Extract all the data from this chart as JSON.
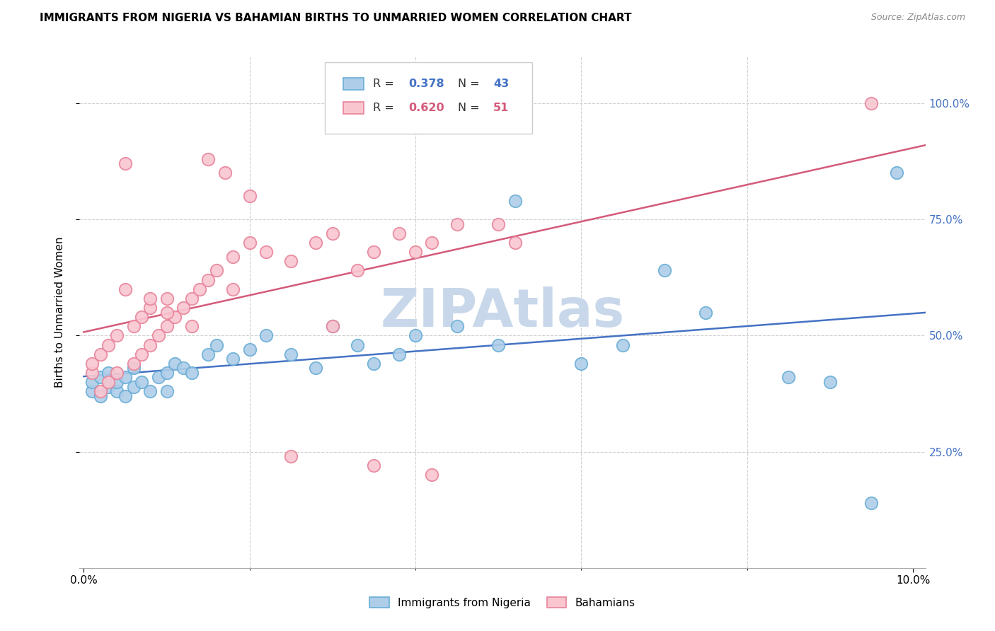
{
  "title": "IMMIGRANTS FROM NIGERIA VS BAHAMIAN BIRTHS TO UNMARRIED WOMEN CORRELATION CHART",
  "source": "Source: ZipAtlas.com",
  "ylabel": "Births to Unmarried Women",
  "legend_blue_label": "Immigrants from Nigeria",
  "legend_pink_label": "Bahamians",
  "blue_face_color": "#aecde8",
  "blue_edge_color": "#6aaed6",
  "pink_face_color": "#f9c6d0",
  "pink_edge_color": "#e8839a",
  "blue_line_color": "#4472c4",
  "pink_line_color": "#d45a7a",
  "watermark_color": "#c8d8ea",
  "grid_color": "#d0d0d0",
  "right_tick_color": "#4472c4",
  "blue_x": [
    0.001,
    0.001,
    0.002,
    0.002,
    0.003,
    0.003,
    0.004,
    0.004,
    0.005,
    0.005,
    0.006,
    0.006,
    0.007,
    0.008,
    0.009,
    0.01,
    0.01,
    0.011,
    0.012,
    0.013,
    0.015,
    0.016,
    0.018,
    0.02,
    0.022,
    0.025,
    0.028,
    0.03,
    0.033,
    0.035,
    0.038,
    0.04,
    0.045,
    0.05,
    0.052,
    0.06,
    0.065,
    0.07,
    0.075,
    0.085,
    0.09,
    0.095,
    0.098
  ],
  "blue_y": [
    0.38,
    0.4,
    0.37,
    0.41,
    0.39,
    0.42,
    0.38,
    0.4,
    0.37,
    0.41,
    0.39,
    0.43,
    0.4,
    0.38,
    0.41,
    0.42,
    0.38,
    0.44,
    0.43,
    0.42,
    0.46,
    0.48,
    0.45,
    0.47,
    0.5,
    0.46,
    0.43,
    0.52,
    0.48,
    0.44,
    0.46,
    0.5,
    0.52,
    0.48,
    0.79,
    0.44,
    0.48,
    0.64,
    0.55,
    0.41,
    0.4,
    0.14,
    0.85
  ],
  "pink_x": [
    0.001,
    0.001,
    0.002,
    0.002,
    0.003,
    0.003,
    0.004,
    0.004,
    0.005,
    0.006,
    0.006,
    0.007,
    0.007,
    0.008,
    0.008,
    0.009,
    0.01,
    0.01,
    0.011,
    0.012,
    0.013,
    0.014,
    0.015,
    0.016,
    0.018,
    0.02,
    0.022,
    0.025,
    0.028,
    0.03,
    0.03,
    0.033,
    0.035,
    0.038,
    0.04,
    0.042,
    0.045,
    0.05,
    0.052,
    0.015,
    0.017,
    0.02,
    0.018,
    0.005,
    0.008,
    0.01,
    0.013,
    0.025,
    0.035,
    0.042,
    0.095
  ],
  "pink_y": [
    0.42,
    0.44,
    0.38,
    0.46,
    0.4,
    0.48,
    0.42,
    0.5,
    0.6,
    0.44,
    0.52,
    0.46,
    0.54,
    0.48,
    0.56,
    0.5,
    0.52,
    0.58,
    0.54,
    0.56,
    0.58,
    0.6,
    0.62,
    0.64,
    0.6,
    0.7,
    0.68,
    0.66,
    0.7,
    0.72,
    0.52,
    0.64,
    0.68,
    0.72,
    0.68,
    0.7,
    0.74,
    0.74,
    0.7,
    0.88,
    0.85,
    0.8,
    0.67,
    0.87,
    0.58,
    0.55,
    0.52,
    0.24,
    0.22,
    0.2,
    1.0
  ],
  "xlim": [
    0.0,
    0.1
  ],
  "ylim": [
    0.0,
    1.1
  ],
  "yticks": [
    0.25,
    0.5,
    0.75,
    1.0
  ],
  "ytick_labels": [
    "25.0%",
    "50.0%",
    "75.0%",
    "100.0%"
  ]
}
